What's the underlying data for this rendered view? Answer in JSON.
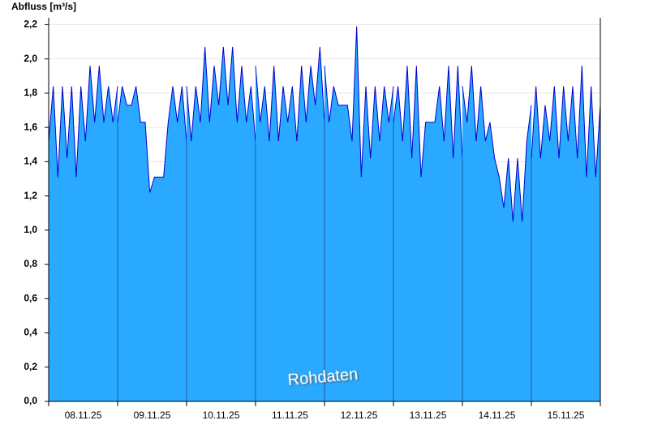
{
  "chart_data": {
    "type": "area",
    "y_label": "Abfluss [m³/s]",
    "annotation": "Rohdaten",
    "color": "#29a9ff",
    "line_color": "#0000cc",
    "grid": true,
    "ylim": [
      0,
      2.24
    ],
    "yticks": [
      {
        "value": 0,
        "label": "0,0"
      },
      {
        "value": 0.2,
        "label": "0,2"
      },
      {
        "value": 0.4,
        "label": "0,4"
      },
      {
        "value": 0.6,
        "label": "0,6"
      },
      {
        "value": 0.8,
        "label": "0,8"
      },
      {
        "value": 1.0,
        "label": "1,0"
      },
      {
        "value": 1.2,
        "label": "1,2"
      },
      {
        "value": 1.4,
        "label": "1,4"
      },
      {
        "value": 1.6,
        "label": "1,6"
      },
      {
        "value": 1.8,
        "label": "1,8"
      },
      {
        "value": 2.0,
        "label": "2,0"
      },
      {
        "value": 2.2,
        "label": "2,2"
      }
    ],
    "categories": [
      "08.11.25",
      "09.11.25",
      "10.11.25",
      "11.11.25",
      "12.11.25",
      "13.11.25",
      "14.11.25",
      "15.11.25"
    ],
    "values": [
      [
        1.52,
        1.84,
        1.31,
        1.84,
        1.42,
        1.84,
        1.31,
        1.84,
        1.52,
        1.96,
        1.63,
        1.96,
        1.63,
        1.84,
        1.63,
        1.84
      ],
      [
        1.63,
        1.84,
        1.73,
        1.73,
        1.84,
        1.63,
        1.63,
        1.22,
        1.31,
        1.31,
        1.31,
        1.63,
        1.84,
        1.63,
        1.84,
        1.52
      ],
      [
        1.84,
        1.52,
        1.84,
        1.63,
        2.07,
        1.63,
        1.96,
        1.73,
        2.07,
        1.73,
        2.07,
        1.63,
        1.96,
        1.63,
        1.84,
        1.52
      ],
      [
        1.96,
        1.63,
        1.84,
        1.52,
        1.96,
        1.52,
        1.84,
        1.63,
        1.84,
        1.52,
        1.96,
        1.63,
        1.96,
        1.73,
        2.07,
        1.63
      ],
      [
        1.96,
        1.63,
        1.84,
        1.73,
        1.73,
        1.73,
        1.52,
        2.19,
        1.31,
        1.84,
        1.42,
        1.84,
        1.52,
        1.84,
        1.63,
        1.84
      ],
      [
        1.63,
        1.84,
        1.52,
        1.96,
        1.42,
        1.96,
        1.31,
        1.63,
        1.63,
        1.63,
        1.84,
        1.52,
        1.96,
        1.42,
        1.96,
        1.42
      ],
      [
        1.84,
        1.63,
        1.96,
        1.52,
        1.84,
        1.52,
        1.63,
        1.42,
        1.31,
        1.13,
        1.42,
        1.05,
        1.42,
        1.05,
        1.52,
        1.73
      ],
      [
        1.42,
        1.84,
        1.42,
        1.73,
        1.52,
        1.84,
        1.42,
        1.84,
        1.52,
        1.84,
        1.42,
        1.96,
        1.31,
        1.84,
        1.31,
        1.73
      ]
    ]
  }
}
